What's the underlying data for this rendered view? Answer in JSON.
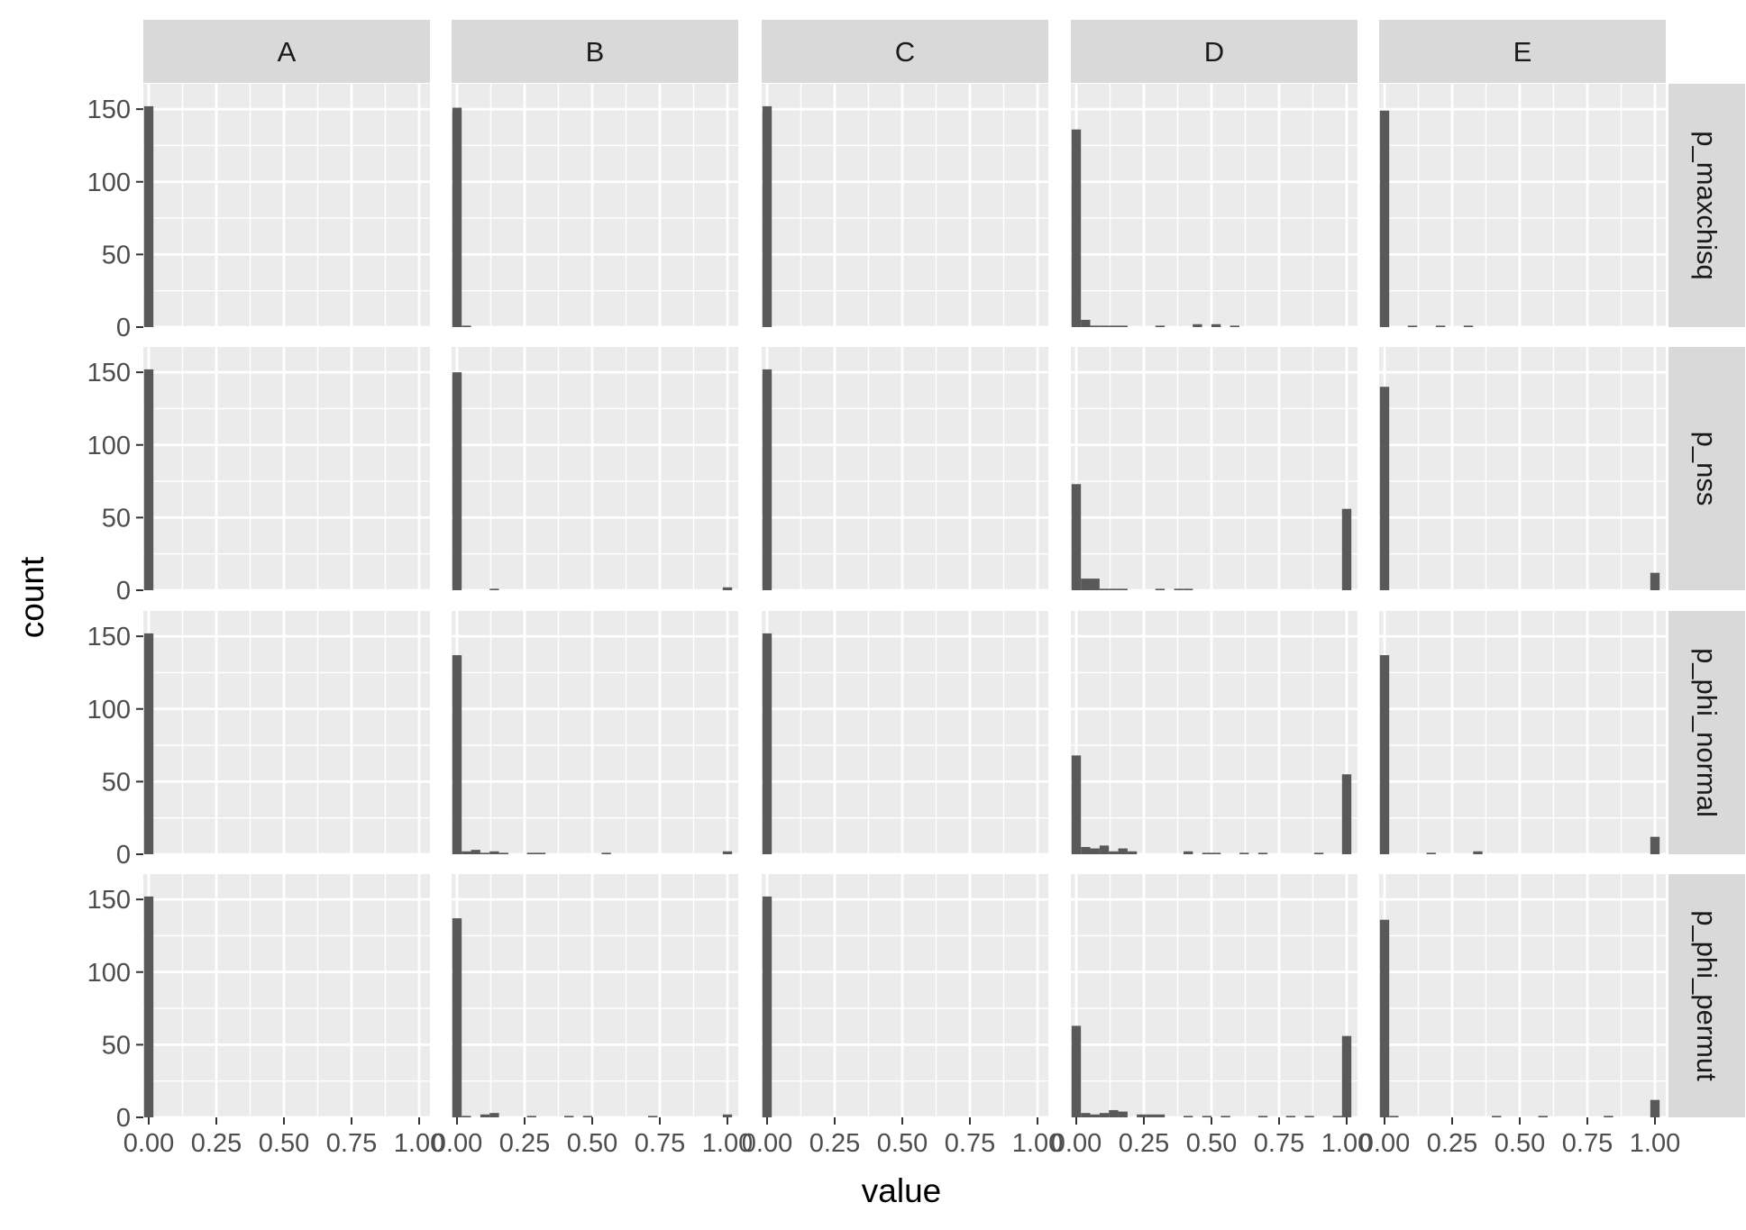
{
  "chart_data": {
    "type": "bar",
    "subtype": "faceted-histogram",
    "xlabel": "value",
    "ylabel": "count",
    "columns": [
      "A",
      "B",
      "C",
      "D",
      "E"
    ],
    "rows": [
      "p_maxchisq",
      "p_nss",
      "p_phi_normal",
      "p_phi_permut"
    ],
    "xlim": [
      -0.02,
      1.04
    ],
    "ylim": [
      0,
      160
    ],
    "x_ticks": [
      0,
      0.25,
      0.5,
      0.75,
      1
    ],
    "x_tick_labels": [
      "0.00",
      "0.25",
      "0.50",
      "0.75",
      "1.00"
    ],
    "y_ticks": [
      0,
      50,
      100,
      150
    ],
    "y_tick_labels": [
      "0",
      "50",
      "100",
      "150"
    ],
    "bin_width": 0.0345,
    "grid": true,
    "bar_color": "#595959",
    "panel_background": "#ebebeb",
    "strip_background": "#d9d9d9",
    "grid_color": "#ffffff",
    "panels": [
      {
        "column": "A",
        "row": "p_maxchisq",
        "bins": [
          {
            "x": 0,
            "count": 152
          }
        ]
      },
      {
        "column": "B",
        "row": "p_maxchisq",
        "bins": [
          {
            "x": 0,
            "count": 151
          },
          {
            "x": 0.0345,
            "count": 1
          }
        ]
      },
      {
        "column": "C",
        "row": "p_maxchisq",
        "bins": [
          {
            "x": 0,
            "count": 152
          }
        ]
      },
      {
        "column": "D",
        "row": "p_maxchisq",
        "bins": [
          {
            "x": 0,
            "count": 136
          },
          {
            "x": 0.0345,
            "count": 5
          },
          {
            "x": 0.069,
            "count": 1
          },
          {
            "x": 0.1035,
            "count": 1
          },
          {
            "x": 0.138,
            "count": 1
          },
          {
            "x": 0.1725,
            "count": 1
          },
          {
            "x": 0.31,
            "count": 1
          },
          {
            "x": 0.448,
            "count": 2
          },
          {
            "x": 0.517,
            "count": 2
          },
          {
            "x": 0.586,
            "count": 1
          }
        ]
      },
      {
        "column": "E",
        "row": "p_maxchisq",
        "bins": [
          {
            "x": 0,
            "count": 149
          },
          {
            "x": 0.1035,
            "count": 1
          },
          {
            "x": 0.207,
            "count": 1
          },
          {
            "x": 0.31,
            "count": 1
          }
        ]
      },
      {
        "column": "A",
        "row": "p_nss",
        "bins": [
          {
            "x": 0,
            "count": 152
          }
        ]
      },
      {
        "column": "B",
        "row": "p_nss",
        "bins": [
          {
            "x": 0,
            "count": 150
          },
          {
            "x": 0.138,
            "count": 1
          },
          {
            "x": 1,
            "count": 2
          }
        ]
      },
      {
        "column": "C",
        "row": "p_nss",
        "bins": [
          {
            "x": 0,
            "count": 152
          }
        ]
      },
      {
        "column": "D",
        "row": "p_nss",
        "bins": [
          {
            "x": 0,
            "count": 73
          },
          {
            "x": 0.0345,
            "count": 8
          },
          {
            "x": 0.069,
            "count": 8
          },
          {
            "x": 0.1035,
            "count": 1
          },
          {
            "x": 0.138,
            "count": 1
          },
          {
            "x": 0.1725,
            "count": 1
          },
          {
            "x": 0.31,
            "count": 1
          },
          {
            "x": 0.379,
            "count": 1
          },
          {
            "x": 0.414,
            "count": 1
          },
          {
            "x": 1,
            "count": 56
          }
        ]
      },
      {
        "column": "E",
        "row": "p_nss",
        "bins": [
          {
            "x": 0,
            "count": 140
          },
          {
            "x": 1,
            "count": 12
          }
        ]
      },
      {
        "column": "A",
        "row": "p_phi_normal",
        "bins": [
          {
            "x": 0,
            "count": 152
          }
        ]
      },
      {
        "column": "B",
        "row": "p_phi_normal",
        "bins": [
          {
            "x": 0,
            "count": 137
          },
          {
            "x": 0.0345,
            "count": 2
          },
          {
            "x": 0.069,
            "count": 3
          },
          {
            "x": 0.1035,
            "count": 1
          },
          {
            "x": 0.138,
            "count": 2
          },
          {
            "x": 0.1725,
            "count": 1
          },
          {
            "x": 0.276,
            "count": 1
          },
          {
            "x": 0.31,
            "count": 1
          },
          {
            "x": 0.552,
            "count": 1
          },
          {
            "x": 1,
            "count": 2
          }
        ]
      },
      {
        "column": "C",
        "row": "p_phi_normal",
        "bins": [
          {
            "x": 0,
            "count": 152
          }
        ]
      },
      {
        "column": "D",
        "row": "p_phi_normal",
        "bins": [
          {
            "x": 0,
            "count": 68
          },
          {
            "x": 0.0345,
            "count": 5
          },
          {
            "x": 0.069,
            "count": 4
          },
          {
            "x": 0.1035,
            "count": 6
          },
          {
            "x": 0.138,
            "count": 2
          },
          {
            "x": 0.1725,
            "count": 4
          },
          {
            "x": 0.207,
            "count": 2
          },
          {
            "x": 0.414,
            "count": 2
          },
          {
            "x": 0.483,
            "count": 1
          },
          {
            "x": 0.517,
            "count": 1
          },
          {
            "x": 0.621,
            "count": 1
          },
          {
            "x": 0.69,
            "count": 1
          },
          {
            "x": 0.897,
            "count": 1
          },
          {
            "x": 1,
            "count": 55
          }
        ]
      },
      {
        "column": "E",
        "row": "p_phi_normal",
        "bins": [
          {
            "x": 0,
            "count": 137
          },
          {
            "x": 0.1725,
            "count": 1
          },
          {
            "x": 0.345,
            "count": 2
          },
          {
            "x": 1,
            "count": 12
          }
        ]
      },
      {
        "column": "A",
        "row": "p_phi_permut",
        "bins": [
          {
            "x": 0,
            "count": 152
          }
        ]
      },
      {
        "column": "B",
        "row": "p_phi_permut",
        "bins": [
          {
            "x": 0,
            "count": 137
          },
          {
            "x": 0.0345,
            "count": 1
          },
          {
            "x": 0.1035,
            "count": 2
          },
          {
            "x": 0.138,
            "count": 3
          },
          {
            "x": 0.276,
            "count": 1
          },
          {
            "x": 0.414,
            "count": 1
          },
          {
            "x": 0.483,
            "count": 1
          },
          {
            "x": 0.724,
            "count": 1
          },
          {
            "x": 1,
            "count": 2
          }
        ]
      },
      {
        "column": "C",
        "row": "p_phi_permut",
        "bins": [
          {
            "x": 0,
            "count": 152
          }
        ]
      },
      {
        "column": "D",
        "row": "p_phi_permut",
        "bins": [
          {
            "x": 0,
            "count": 63
          },
          {
            "x": 0.0345,
            "count": 3
          },
          {
            "x": 0.069,
            "count": 2
          },
          {
            "x": 0.1035,
            "count": 3
          },
          {
            "x": 0.138,
            "count": 5
          },
          {
            "x": 0.1725,
            "count": 4
          },
          {
            "x": 0.241,
            "count": 2
          },
          {
            "x": 0.276,
            "count": 2
          },
          {
            "x": 0.31,
            "count": 2
          },
          {
            "x": 0.414,
            "count": 1
          },
          {
            "x": 0.483,
            "count": 1
          },
          {
            "x": 0.552,
            "count": 1
          },
          {
            "x": 0.69,
            "count": 1
          },
          {
            "x": 0.793,
            "count": 1
          },
          {
            "x": 0.862,
            "count": 1
          },
          {
            "x": 0.966,
            "count": 1
          },
          {
            "x": 1,
            "count": 56
          }
        ]
      },
      {
        "column": "E",
        "row": "p_phi_permut",
        "bins": [
          {
            "x": 0,
            "count": 136
          },
          {
            "x": 0.0345,
            "count": 1
          },
          {
            "x": 0.414,
            "count": 1
          },
          {
            "x": 0.586,
            "count": 1
          },
          {
            "x": 0.828,
            "count": 1
          },
          {
            "x": 1,
            "count": 12
          }
        ]
      }
    ]
  }
}
